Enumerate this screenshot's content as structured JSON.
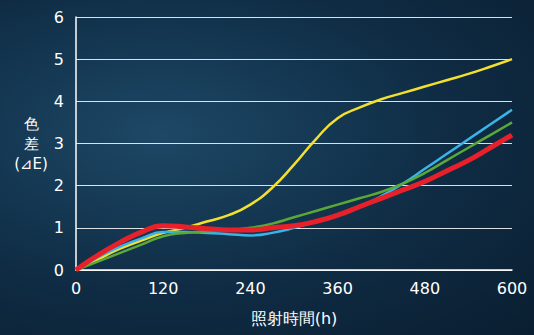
{
  "chart_data": {
    "type": "line",
    "x_label": "照射時間(h)",
    "y_label": "色差(⊿E)",
    "x": [
      0,
      30,
      60,
      90,
      120,
      150,
      180,
      210,
      240,
      270,
      300,
      330,
      360,
      390,
      420,
      450,
      480,
      510,
      540,
      570,
      600
    ],
    "series": [
      {
        "color": "#f2e030",
        "values": [
          0,
          0.25,
          0.5,
          0.7,
          0.88,
          1.0,
          1.15,
          1.3,
          1.55,
          1.95,
          2.5,
          3.1,
          3.6,
          3.85,
          4.05,
          4.2,
          4.35,
          4.5,
          4.65,
          4.82,
          5.0
        ]
      },
      {
        "color": "#3ab4e8",
        "values": [
          0,
          0.3,
          0.55,
          0.75,
          0.9,
          0.9,
          0.88,
          0.85,
          0.82,
          0.88,
          1.0,
          1.15,
          1.3,
          1.5,
          1.75,
          2.05,
          2.4,
          2.75,
          3.1,
          3.45,
          3.8
        ]
      },
      {
        "color": "#5aa838",
        "values": [
          0,
          0.2,
          0.4,
          0.6,
          0.8,
          0.88,
          0.92,
          0.95,
          1.0,
          1.1,
          1.25,
          1.4,
          1.55,
          1.7,
          1.85,
          2.05,
          2.3,
          2.6,
          2.9,
          3.2,
          3.5
        ]
      },
      {
        "color": "#e8202a",
        "values": [
          0,
          0.35,
          0.65,
          0.9,
          1.05,
          1.02,
          0.98,
          0.95,
          0.95,
          1.0,
          1.05,
          1.15,
          1.3,
          1.5,
          1.7,
          1.9,
          2.1,
          2.35,
          2.6,
          2.9,
          3.2
        ]
      }
    ],
    "xlim": [
      0,
      600
    ],
    "xticks": [
      0,
      120,
      240,
      360,
      480,
      600
    ],
    "ylim": [
      0,
      6
    ],
    "yticks": [
      0,
      1,
      2,
      3,
      4,
      5,
      6
    ],
    "grid": true
  }
}
